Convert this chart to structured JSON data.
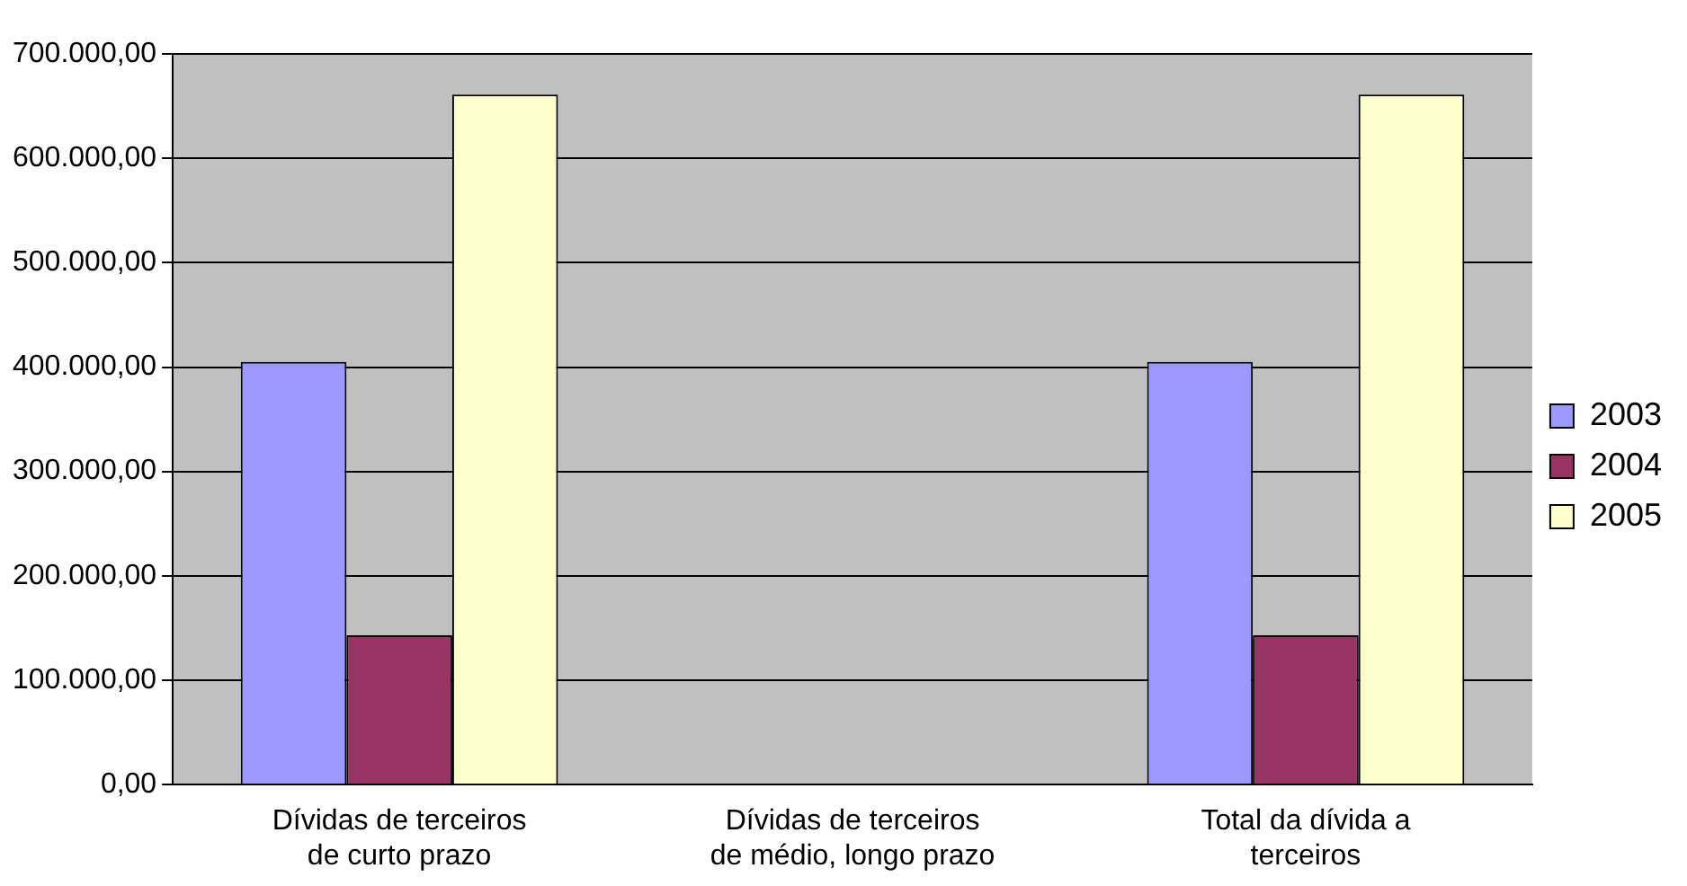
{
  "chart_data": {
    "type": "bar",
    "categories": [
      "Dívidas de terceiros de curto prazo",
      "Dívidas de terceiros de médio, longo prazo",
      "Total da dívida a terceiros"
    ],
    "series": [
      {
        "name": "2003",
        "color": "#9999ff",
        "values": [
          405000,
          0,
          405000
        ]
      },
      {
        "name": "2004",
        "color": "#993366",
        "values": [
          143000,
          0,
          143000
        ]
      },
      {
        "name": "2005",
        "color": "#ffffcc",
        "values": [
          661000,
          0,
          661000
        ]
      }
    ],
    "ylim": [
      0,
      700000
    ],
    "yticks": [
      {
        "value": 0,
        "label": "0,00"
      },
      {
        "value": 100000,
        "label": "100.000,00"
      },
      {
        "value": 200000,
        "label": "200.000,00"
      },
      {
        "value": 300000,
        "label": "300.000,00"
      },
      {
        "value": 400000,
        "label": "400.000,00"
      },
      {
        "value": 500000,
        "label": "500.000,00"
      },
      {
        "value": 600000,
        "label": "600.000,00"
      },
      {
        "value": 700000,
        "label": "700.000,00"
      }
    ],
    "grid": "y",
    "legend": "right"
  }
}
